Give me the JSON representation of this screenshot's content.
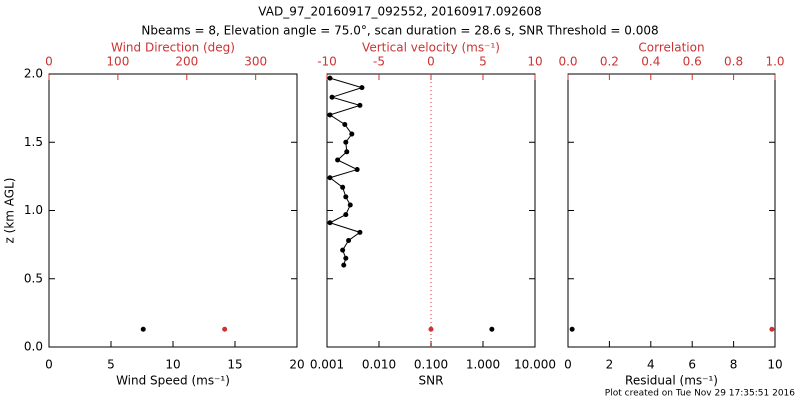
{
  "title": "VAD_97_20160917_092552, 20160917.092608",
  "subtitle": "Nbeams = 8, Elevation angle = 75.0°, scan duration = 28.6 s, SNR Threshold = 0.008",
  "footer": "Plot created on Tue Nov 29 17:35:51 2016",
  "chart_data": [
    {
      "type": "scatter",
      "xlabel": "Wind Speed (ms⁻¹)",
      "xlim": [
        0,
        20
      ],
      "xticks": [
        0,
        5,
        10,
        15,
        20
      ],
      "x2label": "Wind Direction (deg)",
      "x2lim": [
        0,
        360
      ],
      "x2ticks": [
        0,
        100,
        200,
        300
      ],
      "x2color": "#cc3333",
      "ylabel": "z (km AGL)",
      "ylim": [
        0,
        2
      ],
      "yticks": [
        {
          "value": 0,
          "label": "0.0"
        },
        {
          "value": 0.5,
          "label": "0.5"
        },
        {
          "value": 1,
          "label": "1.0"
        },
        {
          "value": 1.5,
          "label": "1.5"
        },
        {
          "value": 2,
          "label": "2.0"
        }
      ],
      "series": [
        {
          "color": "#000000",
          "mode": "markers",
          "x": [
            7.6
          ],
          "y": [
            0.13
          ]
        },
        {
          "color": "#cc3333",
          "mode": "markers",
          "axis": "x2",
          "x": [
            255
          ],
          "y": [
            0.13
          ]
        }
      ]
    },
    {
      "type": "line",
      "xlabel": "SNR",
      "xlim": [
        0.001,
        10
      ],
      "xlog": true,
      "xticks": [
        {
          "value": 0.001,
          "label": "0.001"
        },
        {
          "value": 0.01,
          "label": "0.010"
        },
        {
          "value": 0.1,
          "label": "0.100"
        },
        {
          "value": 1,
          "label": "1.000"
        },
        {
          "value": 10,
          "label": "10.000"
        }
      ],
      "x2label": "Vertical velocity (ms⁻¹)",
      "x2lim": [
        -10,
        10
      ],
      "x2ticks": [
        -10,
        -5,
        0,
        5,
        10
      ],
      "x2color": "#cc3333",
      "ylim": [
        0,
        2
      ],
      "yticks": [
        0,
        0.5,
        1,
        1.5,
        2
      ],
      "reference_line": {
        "axis": "x2",
        "value": 0,
        "color": "#cc3333",
        "dash": "dotted"
      },
      "series": [
        {
          "color": "#000000",
          "mode": "lines+markers",
          "x": [
            0.00114,
            0.0047,
            0.00125,
            0.0043,
            0.00114,
            0.0022,
            0.003,
            0.0023,
            0.0024,
            0.0016,
            0.0038,
            0.00114,
            0.002,
            0.0023,
            0.0028,
            0.0023,
            0.00114,
            0.0043,
            0.0026,
            0.002,
            0.0023,
            0.0021
          ],
          "y": [
            1.97,
            1.9,
            1.83,
            1.77,
            1.7,
            1.63,
            1.56,
            1.5,
            1.43,
            1.37,
            1.3,
            1.24,
            1.17,
            1.1,
            1.04,
            0.97,
            0.91,
            0.84,
            0.78,
            0.71,
            0.65,
            0.6
          ]
        },
        {
          "color": "#000000",
          "mode": "markers",
          "x": [
            1.48
          ],
          "y": [
            0.13
          ]
        },
        {
          "color": "#cc3333",
          "mode": "markers",
          "axis": "x2",
          "x": [
            0
          ],
          "y": [
            0.13
          ]
        }
      ]
    },
    {
      "type": "scatter",
      "xlabel": "Residual (ms⁻¹)",
      "xlim": [
        0,
        10
      ],
      "xticks": [
        0,
        2,
        4,
        6,
        8,
        10
      ],
      "x2label": "Correlation",
      "x2lim": [
        0,
        1
      ],
      "x2color": "#cc3333",
      "x2ticks": [
        {
          "value": 0,
          "label": "0.0"
        },
        {
          "value": 0.2,
          "label": "0.2"
        },
        {
          "value": 0.4,
          "label": "0.4"
        },
        {
          "value": 0.6,
          "label": "0.6"
        },
        {
          "value": 0.8,
          "label": "0.8"
        },
        {
          "value": 1,
          "label": "1.0"
        }
      ],
      "ylim": [
        0,
        2
      ],
      "yticks": [
        0,
        0.5,
        1,
        1.5,
        2
      ],
      "series": [
        {
          "color": "#000000",
          "mode": "markers",
          "x": [
            0.2
          ],
          "y": [
            0.13
          ]
        },
        {
          "color": "#cc3333",
          "mode": "markers",
          "axis": "x2",
          "x": [
            0.985
          ],
          "y": [
            0.13
          ]
        }
      ]
    }
  ]
}
